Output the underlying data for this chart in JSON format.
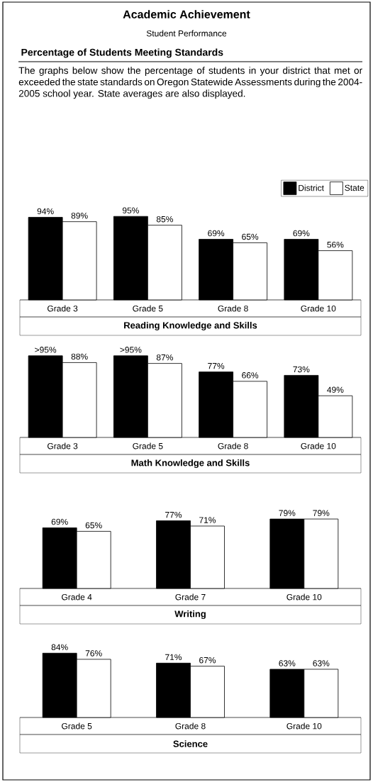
{
  "chart_data": [
    {
      "type": "bar",
      "title": "Academic Achievement",
      "subtitle": "Student Performance",
      "annotations": [
        "Percentage of Students Meeting Standards",
        "The graphs below show the percentage of students in your district that met or exceeded the state standards on Oregon Statewide Assessments during the 2004-2005 school year. State averages are also displayed."
      ],
      "xlabel": "Reading Knowledge and Skills",
      "categories": [
        "Grade 3",
        "Grade 5",
        "Grade 8",
        "Grade 10"
      ],
      "legend": "top right",
      "series": [
        {
          "name": "District",
          "color": "#000000",
          "values": [
            94,
            95,
            69,
            69
          ],
          "value_labels": [
            "94%",
            "95%",
            "69%",
            "69%"
          ]
        },
        {
          "name": "State",
          "color": "#ffffff",
          "values": [
            89,
            85,
            65,
            56
          ],
          "value_labels": [
            "89%",
            "85%",
            "65%",
            "56%"
          ]
        }
      ]
    },
    {
      "type": "bar",
      "xlabel": "Math Knowledge and Skills",
      "categories": [
        "Grade 3",
        "Grade 5",
        "Grade 8",
        "Grade 10"
      ],
      "series": [
        {
          "color": "#000000",
          "values": [
            96,
            96,
            77,
            73
          ],
          "value_labels": [
            ">95%",
            ">95%",
            "77%",
            "73%"
          ]
        },
        {
          "color": "#ffffff",
          "values": [
            88,
            87,
            66,
            49
          ],
          "value_labels": [
            "88%",
            "87%",
            "66%",
            "49%"
          ]
        }
      ]
    },
    {
      "type": "bar",
      "xlabel": "Writing",
      "categories": [
        "Grade 4",
        "Grade 7",
        "Grade 10"
      ],
      "series": [
        {
          "color": "#000000",
          "values": [
            69,
            77,
            79
          ],
          "value_labels": [
            "69%",
            "77%",
            "79%"
          ]
        },
        {
          "color": "#ffffff",
          "values": [
            65,
            71,
            79
          ],
          "value_labels": [
            "65%",
            "71%",
            "79%"
          ]
        }
      ]
    },
    {
      "type": "bar",
      "xlabel": "Science",
      "categories": [
        "Grade 5",
        "Grade 8",
        "Grade 10"
      ],
      "series": [
        {
          "color": "#000000",
          "values": [
            84,
            71,
            63
          ],
          "value_labels": [
            "84%",
            "71%",
            "63%"
          ]
        },
        {
          "color": "#ffffff",
          "values": [
            76,
            67,
            63
          ],
          "value_labels": [
            "76%",
            "67%",
            "63%"
          ]
        }
      ]
    }
  ]
}
